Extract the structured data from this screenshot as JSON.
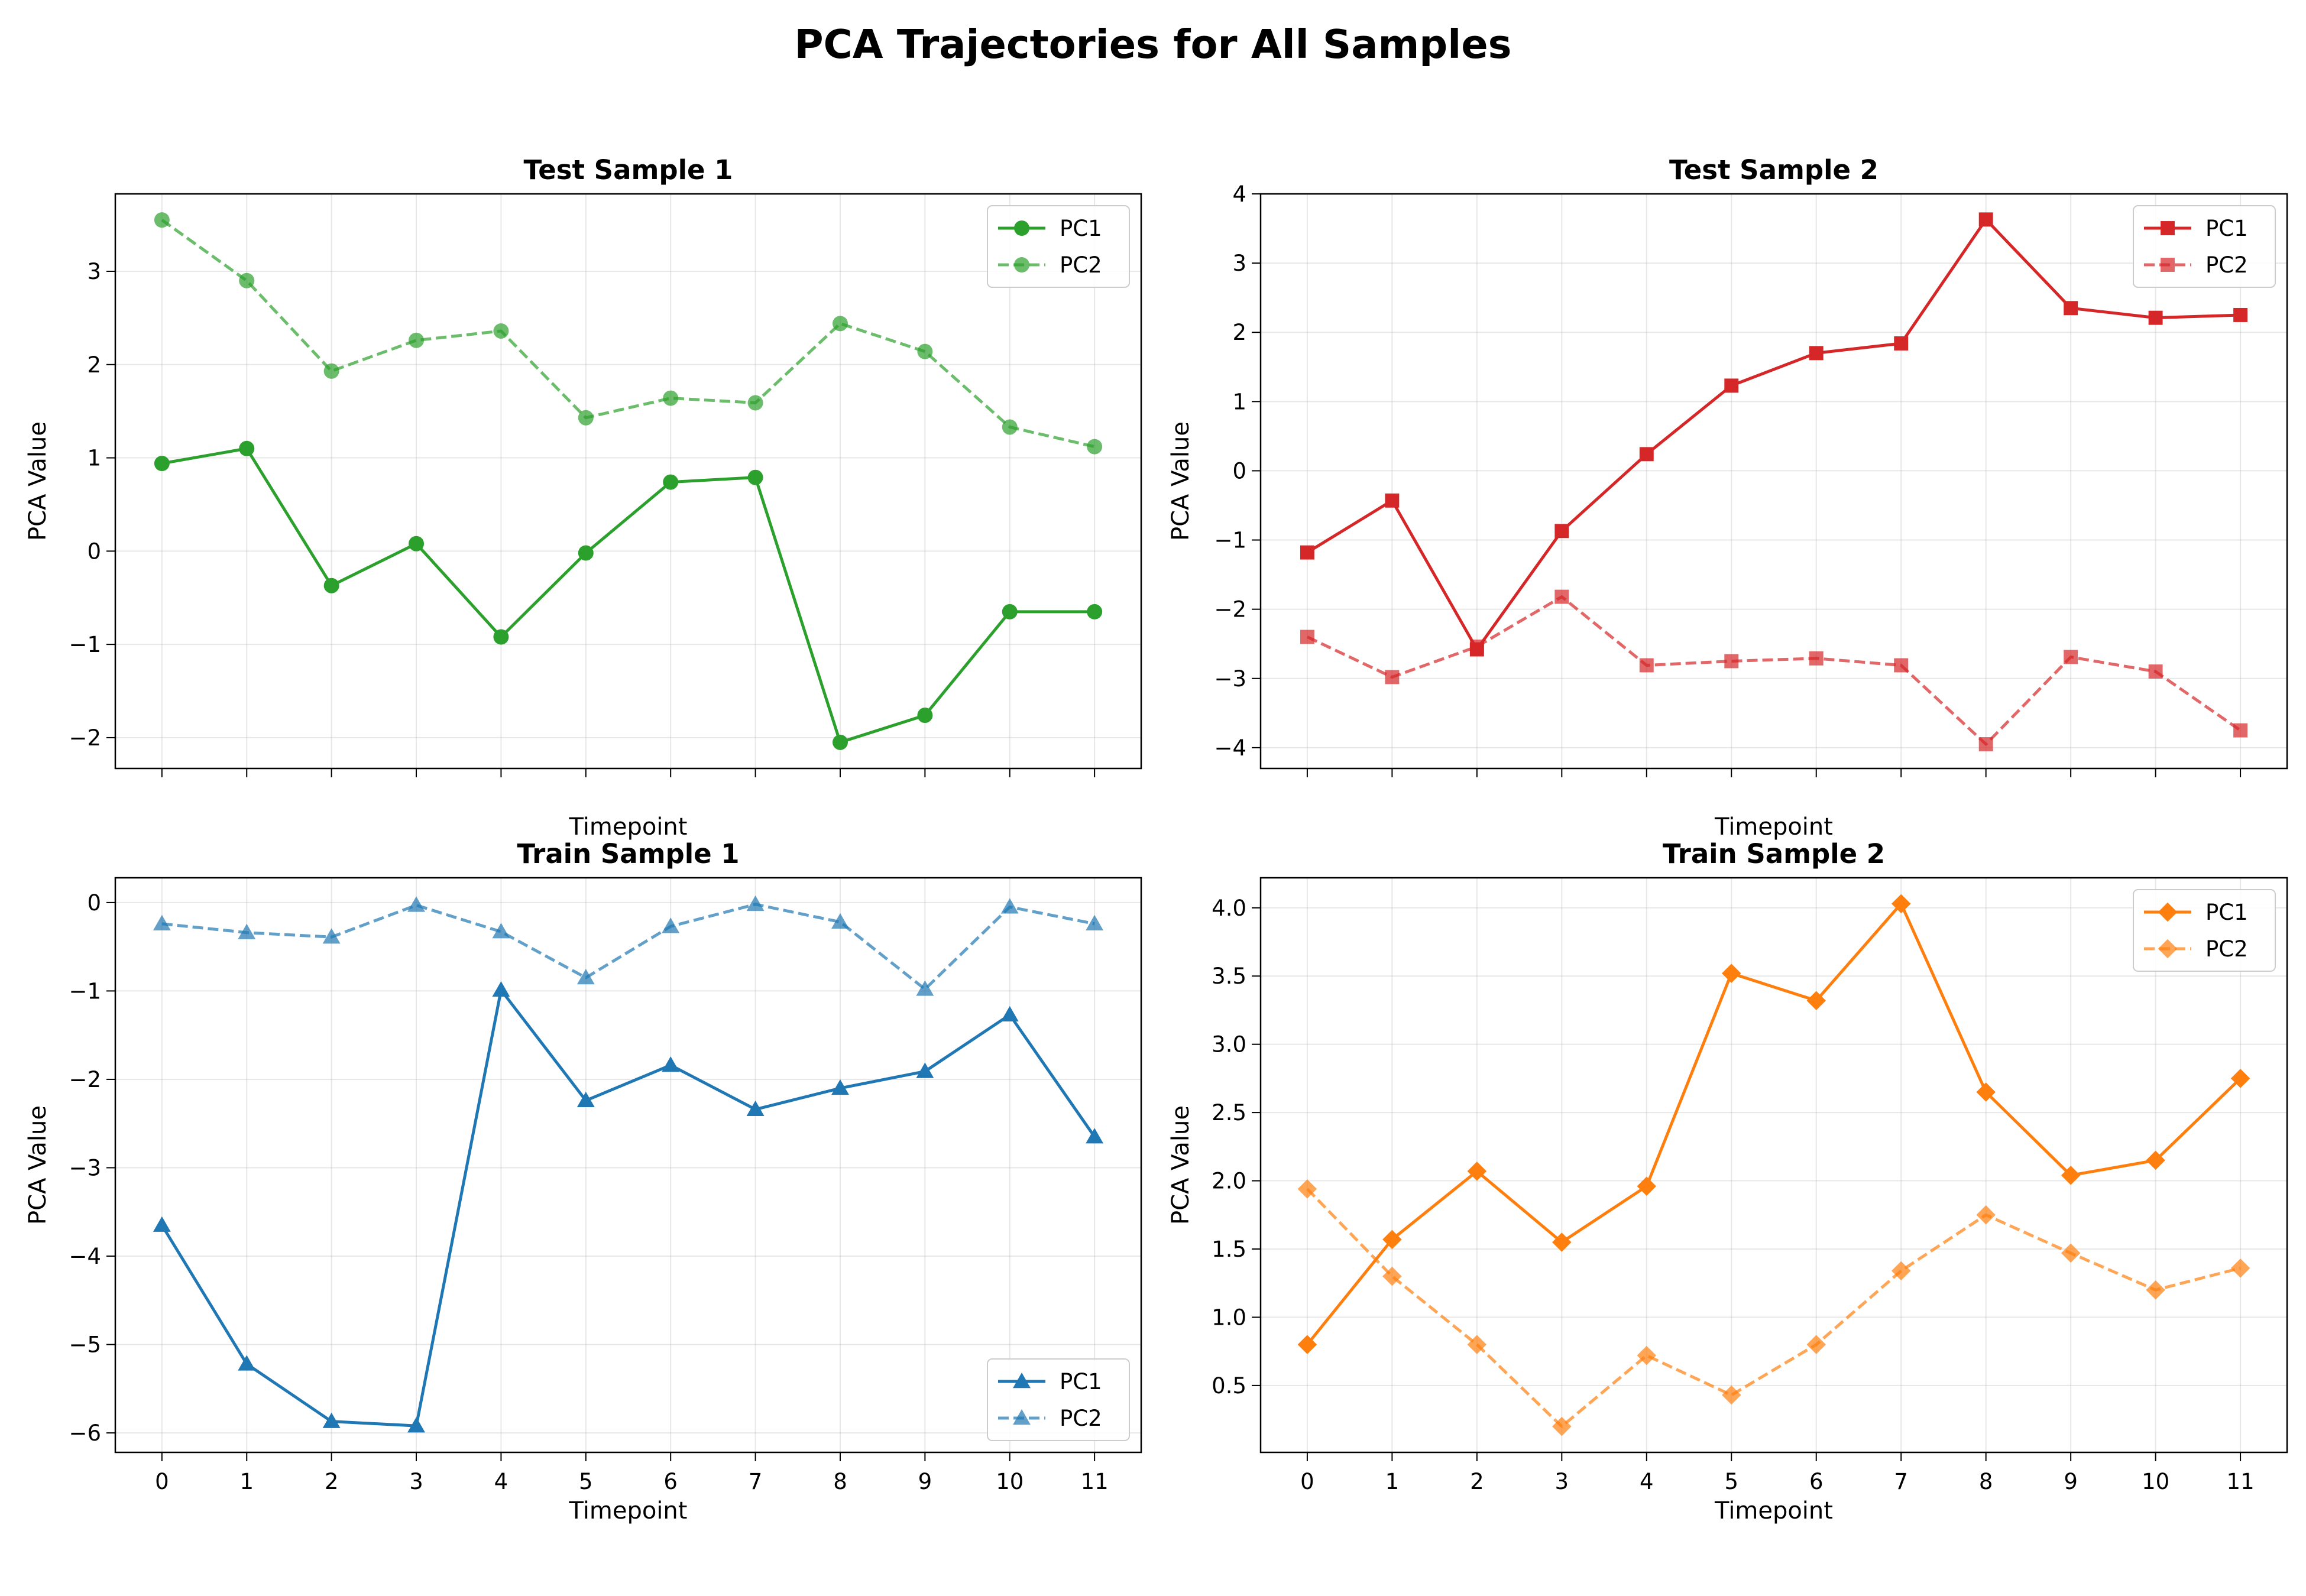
{
  "figure_title": "PCA Trajectories for All Samples",
  "chart_data": [
    {
      "type": "line",
      "title": "Test Sample 1",
      "xlabel": "Timepoint",
      "ylabel": "PCA Value",
      "x": [
        0,
        1,
        2,
        3,
        4,
        5,
        6,
        7,
        8,
        9,
        10,
        11
      ],
      "show_xticklabels": false,
      "xlim": [
        -0.55,
        11.55
      ],
      "ylim": [
        -2.33,
        3.83
      ],
      "yticks": [
        -2,
        -1,
        0,
        1,
        2,
        3
      ],
      "yticklabels": [
        "−2",
        "−1",
        "0",
        "1",
        "2",
        "3"
      ],
      "grid": true,
      "legend_position": "top-right",
      "marker": "circle",
      "color": "#2ca02c",
      "series": [
        {
          "name": "PC1",
          "style": "solid",
          "values": [
            0.94,
            1.1,
            -0.37,
            0.08,
            -0.92,
            -0.02,
            0.74,
            0.79,
            -2.05,
            -1.76,
            -0.65,
            -0.65
          ]
        },
        {
          "name": "PC2",
          "style": "dashed",
          "values": [
            3.55,
            2.9,
            1.93,
            2.26,
            2.36,
            1.43,
            1.64,
            1.59,
            2.44,
            2.14,
            1.33,
            1.12
          ]
        }
      ]
    },
    {
      "type": "line",
      "title": "Test Sample 2",
      "xlabel": "Timepoint",
      "ylabel": "PCA Value",
      "x": [
        0,
        1,
        2,
        3,
        4,
        5,
        6,
        7,
        8,
        9,
        10,
        11
      ],
      "show_xticklabels": false,
      "xlim": [
        -0.55,
        11.55
      ],
      "ylim": [
        -4.3,
        4.0
      ],
      "yticks": [
        -4,
        -3,
        -2,
        -1,
        0,
        1,
        2,
        3,
        4
      ],
      "yticklabels": [
        "−4",
        "−3",
        "−2",
        "−1",
        "0",
        "1",
        "2",
        "3",
        "4"
      ],
      "grid": true,
      "legend_position": "top-right",
      "marker": "square",
      "color": "#d62728",
      "series": [
        {
          "name": "PC1",
          "style": "solid",
          "values": [
            -1.18,
            -0.43,
            -2.58,
            -0.87,
            0.24,
            1.23,
            1.7,
            1.84,
            3.63,
            2.35,
            2.21,
            2.25
          ]
        },
        {
          "name": "PC2",
          "style": "dashed",
          "values": [
            -2.4,
            -2.98,
            -2.54,
            -1.82,
            -2.81,
            -2.75,
            -2.71,
            -2.81,
            -3.95,
            -2.69,
            -2.9,
            -3.75
          ]
        }
      ]
    },
    {
      "type": "line",
      "title": "Train Sample 1",
      "xlabel": "Timepoint",
      "ylabel": "PCA Value",
      "x": [
        0,
        1,
        2,
        3,
        4,
        5,
        6,
        7,
        8,
        9,
        10,
        11
      ],
      "show_xticklabels": true,
      "xticklabels": [
        "0",
        "1",
        "2",
        "3",
        "4",
        "5",
        "6",
        "7",
        "8",
        "9",
        "10",
        "11"
      ],
      "xlim": [
        -0.55,
        11.55
      ],
      "ylim": [
        -6.22,
        0.28
      ],
      "yticks": [
        -6,
        -5,
        -4,
        -3,
        -2,
        -1,
        0
      ],
      "yticklabels": [
        "−6",
        "−5",
        "−4",
        "−3",
        "−2",
        "−1",
        "0"
      ],
      "grid": true,
      "legend_position": "bottom-right",
      "marker": "triangle",
      "color": "#1f77b4",
      "series": [
        {
          "name": "PC1",
          "style": "solid",
          "values": [
            -3.65,
            -5.22,
            -5.87,
            -5.92,
            -0.99,
            -2.24,
            -1.84,
            -2.34,
            -2.1,
            -1.91,
            -1.27,
            -2.65
          ]
        },
        {
          "name": "PC2",
          "style": "dashed",
          "values": [
            -0.24,
            -0.34,
            -0.39,
            -0.03,
            -0.33,
            -0.85,
            -0.27,
            -0.02,
            -0.22,
            -0.98,
            -0.05,
            -0.24
          ]
        }
      ]
    },
    {
      "type": "line",
      "title": "Train Sample 2",
      "xlabel": "Timepoint",
      "ylabel": "PCA Value",
      "x": [
        0,
        1,
        2,
        3,
        4,
        5,
        6,
        7,
        8,
        9,
        10,
        11
      ],
      "show_xticklabels": true,
      "xticklabels": [
        "0",
        "1",
        "2",
        "3",
        "4",
        "5",
        "6",
        "7",
        "8",
        "9",
        "10",
        "11"
      ],
      "xlim": [
        -0.55,
        11.55
      ],
      "ylim": [
        0.01,
        4.22
      ],
      "yticks": [
        0.5,
        1.0,
        1.5,
        2.0,
        2.5,
        3.0,
        3.5,
        4.0
      ],
      "yticklabels": [
        "0.5",
        "1.0",
        "1.5",
        "2.0",
        "2.5",
        "3.0",
        "3.5",
        "4.0"
      ],
      "grid": true,
      "legend_position": "top-right",
      "marker": "diamond",
      "color": "#ff7f0e",
      "series": [
        {
          "name": "PC1",
          "style": "solid",
          "values": [
            0.8,
            1.57,
            2.07,
            1.55,
            1.96,
            3.52,
            3.32,
            4.03,
            2.65,
            2.04,
            2.15,
            2.75
          ]
        },
        {
          "name": "PC2",
          "style": "dashed",
          "values": [
            1.94,
            1.3,
            0.8,
            0.2,
            0.72,
            0.43,
            0.8,
            1.34,
            1.75,
            1.47,
            1.2,
            1.36
          ]
        }
      ]
    }
  ]
}
